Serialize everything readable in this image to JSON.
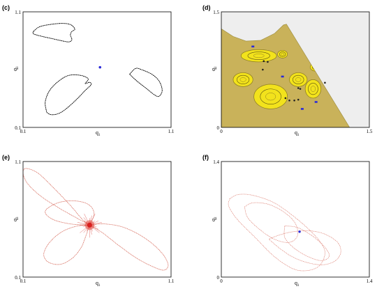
{
  "chart_data": [
    {
      "id": "c",
      "type": "scatter",
      "panel_label": "(c)",
      "xlabel": "q",
      "xlabel_sub": "1",
      "ylabel": "q",
      "ylabel_sub": "3",
      "xlim": [
        0.1,
        1.1
      ],
      "ylim": [
        0.1,
        1.1
      ],
      "xticks": [
        "0.1",
        "1.1"
      ],
      "yticks": [
        "0.1",
        "1.1"
      ],
      "grid": false,
      "curve_color": "#000000",
      "marker_color": "#2a2ad8",
      "marker": [
        0.62,
        0.62
      ],
      "loops": [
        [
          [
            0.17,
            0.93
          ],
          [
            0.21,
            0.97
          ],
          [
            0.28,
            0.99
          ],
          [
            0.36,
            1.0
          ],
          [
            0.42,
            0.99
          ],
          [
            0.45,
            0.95
          ],
          [
            0.43,
            0.93
          ],
          [
            0.42,
            0.9
          ],
          [
            0.43,
            0.86
          ],
          [
            0.41,
            0.84
          ],
          [
            0.36,
            0.85
          ],
          [
            0.29,
            0.87
          ],
          [
            0.22,
            0.89
          ],
          [
            0.17,
            0.91
          ],
          [
            0.17,
            0.93
          ]
        ],
        [
          [
            0.26,
            0.23
          ],
          [
            0.29,
            0.21
          ],
          [
            0.34,
            0.22
          ],
          [
            0.39,
            0.26
          ],
          [
            0.46,
            0.34
          ],
          [
            0.52,
            0.42
          ],
          [
            0.56,
            0.47
          ],
          [
            0.55,
            0.49
          ],
          [
            0.52,
            0.48
          ],
          [
            0.54,
            0.52
          ],
          [
            0.49,
            0.55
          ],
          [
            0.41,
            0.55
          ],
          [
            0.34,
            0.5
          ],
          [
            0.28,
            0.42
          ],
          [
            0.25,
            0.32
          ],
          [
            0.26,
            0.23
          ]
        ],
        [
          [
            0.82,
            0.56
          ],
          [
            0.86,
            0.61
          ],
          [
            0.9,
            0.6
          ],
          [
            0.97,
            0.56
          ],
          [
            1.02,
            0.5
          ],
          [
            1.04,
            0.42
          ],
          [
            1.02,
            0.37
          ],
          [
            0.99,
            0.38
          ],
          [
            0.93,
            0.44
          ],
          [
            0.87,
            0.5
          ],
          [
            0.82,
            0.56
          ]
        ]
      ]
    },
    {
      "id": "d",
      "type": "scatter",
      "panel_label": "(d)",
      "xlabel": "q",
      "xlabel_sub": "1",
      "ylabel": "q",
      "ylabel_sub": "2",
      "xlim": [
        0,
        1.5
      ],
      "ylim": [
        0,
        1.5
      ],
      "xticks": [
        "0",
        "1.5"
      ],
      "yticks": [
        "0",
        "1.5"
      ],
      "grid": false,
      "background_color": "#eeeeee",
      "sea_color": "#c9b25a",
      "island_color": "#f2e21c",
      "boundary": [
        [
          0,
          1.28
        ],
        [
          0.12,
          1.18
        ],
        [
          0.25,
          1.12
        ],
        [
          0.4,
          1.13
        ],
        [
          0.54,
          1.22
        ],
        [
          0.63,
          1.33
        ],
        [
          0.66,
          1.34
        ],
        [
          1.3,
          0.0
        ],
        [
          0,
          0
        ]
      ],
      "islands": [
        {
          "cx": 0.38,
          "cy": 0.93,
          "rx": 0.18,
          "ry": 0.08
        },
        {
          "cx": 0.22,
          "cy": 0.62,
          "rx": 0.1,
          "ry": 0.09
        },
        {
          "cx": 0.5,
          "cy": 0.4,
          "rx": 0.17,
          "ry": 0.16
        },
        {
          "cx": 0.78,
          "cy": 0.62,
          "rx": 0.09,
          "ry": 0.09
        },
        {
          "cx": 0.93,
          "cy": 0.5,
          "rx": 0.08,
          "ry": 0.12
        },
        {
          "cx": 0.62,
          "cy": 0.95,
          "rx": 0.05,
          "ry": 0.05
        },
        {
          "cx": 0.96,
          "cy": 0.78,
          "rx": 0.06,
          "ry": 0.05
        }
      ],
      "marker_color": "#2a2ad8",
      "markers": [
        [
          0.32,
          1.05
        ],
        [
          0.62,
          0.66
        ],
        [
          0.96,
          0.33
        ],
        [
          0.82,
          0.24
        ]
      ],
      "dark_points": [
        [
          0.43,
          0.86
        ],
        [
          0.47,
          0.85
        ],
        [
          0.42,
          0.75
        ],
        [
          0.78,
          0.51
        ],
        [
          0.8,
          0.5
        ],
        [
          0.74,
          0.35
        ],
        [
          0.78,
          0.36
        ],
        [
          0.65,
          0.38
        ],
        [
          0.69,
          0.35
        ],
        [
          1.05,
          0.58
        ]
      ]
    },
    {
      "id": "e",
      "type": "scatter",
      "panel_label": "(e)",
      "xlabel": "q",
      "xlabel_sub": "1",
      "ylabel": "q",
      "ylabel_sub": "3",
      "xlim": [
        0.1,
        1.1
      ],
      "ylim": [
        0.1,
        1.1
      ],
      "xticks": [
        "0.1",
        "1.1"
      ],
      "yticks": [
        "0.1",
        "1.1"
      ],
      "grid": false,
      "curve_color": "#c8321e",
      "center": [
        0.55,
        0.55
      ],
      "lobes": [
        [
          [
            0.55,
            0.55
          ],
          [
            0.45,
            0.62
          ],
          [
            0.34,
            0.7
          ],
          [
            0.22,
            0.8
          ],
          [
            0.13,
            0.91
          ],
          [
            0.1,
            1.0
          ],
          [
            0.12,
            1.04
          ],
          [
            0.2,
            1.0
          ],
          [
            0.3,
            0.88
          ],
          [
            0.42,
            0.72
          ],
          [
            0.5,
            0.6
          ],
          [
            0.55,
            0.55
          ]
        ],
        [
          [
            0.55,
            0.55
          ],
          [
            0.46,
            0.54
          ],
          [
            0.36,
            0.49
          ],
          [
            0.28,
            0.4
          ],
          [
            0.24,
            0.3
          ],
          [
            0.27,
            0.23
          ],
          [
            0.35,
            0.21
          ],
          [
            0.43,
            0.26
          ],
          [
            0.49,
            0.35
          ],
          [
            0.52,
            0.44
          ],
          [
            0.55,
            0.55
          ]
        ],
        [
          [
            0.55,
            0.55
          ],
          [
            0.64,
            0.48
          ],
          [
            0.74,
            0.38
          ],
          [
            0.86,
            0.27
          ],
          [
            0.96,
            0.2
          ],
          [
            1.05,
            0.16
          ],
          [
            1.08,
            0.21
          ],
          [
            1.03,
            0.32
          ],
          [
            0.92,
            0.44
          ],
          [
            0.78,
            0.53
          ],
          [
            0.65,
            0.56
          ],
          [
            0.55,
            0.55
          ]
        ],
        [
          [
            0.55,
            0.55
          ],
          [
            0.58,
            0.65
          ],
          [
            0.54,
            0.73
          ],
          [
            0.44,
            0.76
          ],
          [
            0.33,
            0.74
          ],
          [
            0.25,
            0.67
          ],
          [
            0.3,
            0.6
          ],
          [
            0.42,
            0.56
          ],
          [
            0.55,
            0.55
          ]
        ]
      ]
    },
    {
      "id": "f",
      "type": "scatter",
      "panel_label": "(f)",
      "xlabel": "q",
      "xlabel_sub": "1",
      "ylabel": "q",
      "ylabel_sub": "2",
      "xlim": [
        0,
        1.4
      ],
      "ylim": [
        0,
        1.4
      ],
      "xticks": [
        "0",
        "1.4"
      ],
      "yticks": [
        "0",
        "1.4"
      ],
      "grid": false,
      "curve_color": "#c8321e",
      "marker_color": "#2a2ad8",
      "marker": [
        0.74,
        0.55
      ],
      "loops": [
        [
          [
            0.08,
            0.95
          ],
          [
            0.16,
            1.0
          ],
          [
            0.3,
            0.99
          ],
          [
            0.5,
            0.9
          ],
          [
            0.7,
            0.72
          ],
          [
            0.85,
            0.55
          ],
          [
            0.95,
            0.4
          ],
          [
            0.98,
            0.28
          ],
          [
            0.93,
            0.14
          ],
          [
            0.82,
            0.08
          ],
          [
            0.68,
            0.1
          ],
          [
            0.5,
            0.25
          ],
          [
            0.32,
            0.48
          ],
          [
            0.15,
            0.7
          ],
          [
            0.07,
            0.86
          ],
          [
            0.08,
            0.95
          ]
        ],
        [
          [
            0.45,
            0.46
          ],
          [
            0.55,
            0.35
          ],
          [
            0.68,
            0.24
          ],
          [
            0.83,
            0.17
          ],
          [
            0.97,
            0.15
          ],
          [
            1.08,
            0.2
          ],
          [
            1.13,
            0.3
          ],
          [
            1.1,
            0.42
          ],
          [
            0.98,
            0.52
          ],
          [
            0.84,
            0.56
          ],
          [
            0.68,
            0.55
          ],
          [
            0.55,
            0.51
          ],
          [
            0.45,
            0.46
          ]
        ],
        [
          [
            0.22,
            0.85
          ],
          [
            0.3,
            0.9
          ],
          [
            0.45,
            0.88
          ],
          [
            0.6,
            0.78
          ],
          [
            0.7,
            0.65
          ],
          [
            0.72,
            0.5
          ],
          [
            0.64,
            0.42
          ],
          [
            0.5,
            0.46
          ],
          [
            0.36,
            0.58
          ],
          [
            0.25,
            0.72
          ],
          [
            0.22,
            0.85
          ]
        ],
        [
          [
            0.6,
            0.62
          ],
          [
            0.72,
            0.6
          ],
          [
            0.86,
            0.5
          ],
          [
            0.98,
            0.36
          ],
          [
            1.02,
            0.25
          ],
          [
            0.94,
            0.2
          ],
          [
            0.8,
            0.26
          ],
          [
            0.68,
            0.36
          ],
          [
            0.6,
            0.48
          ],
          [
            0.6,
            0.62
          ]
        ]
      ]
    }
  ]
}
